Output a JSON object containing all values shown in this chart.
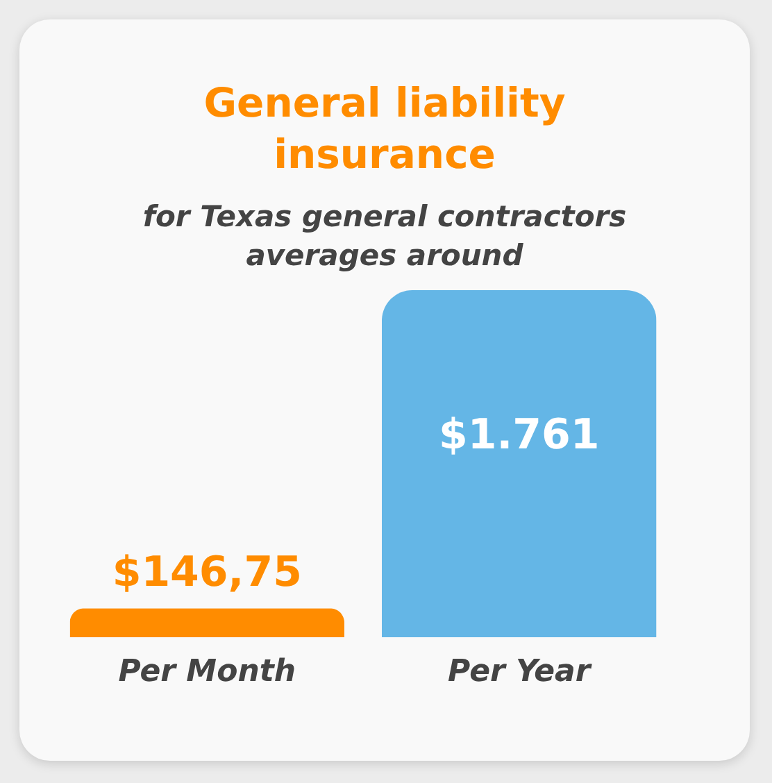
{
  "chart_data": {
    "type": "bar",
    "title": "General liability insurance",
    "subtitle": "for Texas general contractors averages around",
    "categories": [
      "Per Month",
      "Per Year"
    ],
    "values": [
      146.75,
      1761
    ],
    "colors": [
      "#ff8c00",
      "#64b6e6"
    ],
    "value_labels": [
      "$146,75",
      "$1.761"
    ],
    "grid": false
  }
}
